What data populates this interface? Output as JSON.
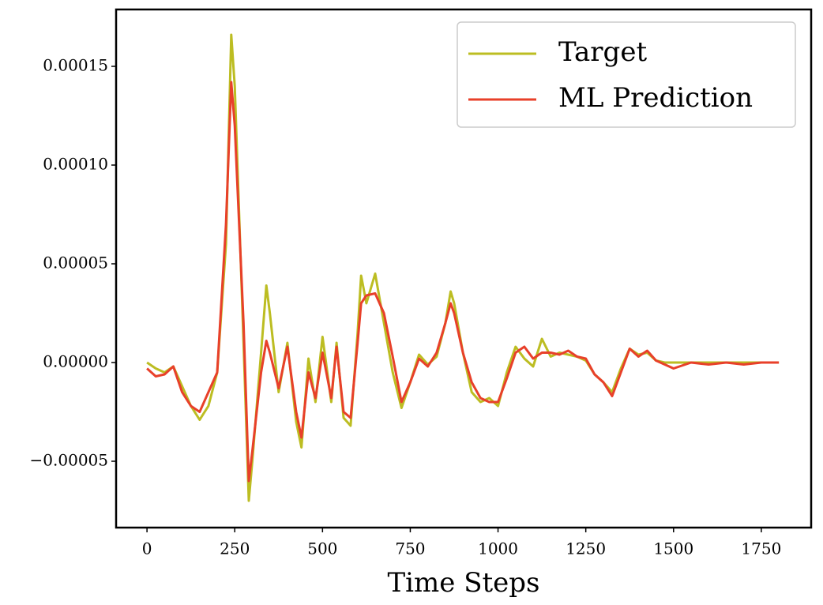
{
  "chart_data": {
    "type": "line",
    "xlabel": "Time Steps",
    "x": [
      0,
      25,
      50,
      75,
      100,
      125,
      150,
      175,
      200,
      225,
      240,
      250,
      275,
      290,
      300,
      325,
      340,
      350,
      375,
      400,
      425,
      440,
      460,
      480,
      500,
      525,
      540,
      560,
      580,
      600,
      610,
      625,
      650,
      675,
      700,
      725,
      750,
      775,
      800,
      825,
      850,
      865,
      875,
      900,
      925,
      950,
      975,
      1000,
      1025,
      1050,
      1075,
      1100,
      1125,
      1150,
      1175,
      1200,
      1225,
      1250,
      1275,
      1300,
      1325,
      1350,
      1375,
      1400,
      1425,
      1450,
      1475,
      1500,
      1550,
      1600,
      1650,
      1700,
      1750,
      1800
    ],
    "series": [
      {
        "name": "Target",
        "color": "#bcbd22",
        "values": [
          0,
          -3e-06,
          -5e-06,
          -2e-06,
          -1.2e-05,
          -2.2e-05,
          -2.9e-05,
          -2.2e-05,
          -5e-06,
          6e-05,
          0.000166,
          0.00014,
          1e-05,
          -7e-05,
          -5e-05,
          5e-06,
          3.9e-05,
          2.5e-05,
          -1.5e-05,
          1e-05,
          -3e-05,
          -4.3e-05,
          2e-06,
          -2e-05,
          1.3e-05,
          -2e-05,
          1e-05,
          -2.8e-05,
          -3.2e-05,
          1.5e-05,
          4.4e-05,
          3e-05,
          4.5e-05,
          2e-05,
          -5e-06,
          -2.3e-05,
          -1e-05,
          4e-06,
          -1e-06,
          3e-06,
          2e-05,
          3.6e-05,
          3e-05,
          5e-06,
          -1.5e-05,
          -2e-05,
          -1.8e-05,
          -2.2e-05,
          -5e-06,
          8e-06,
          2e-06,
          -2e-06,
          1.2e-05,
          3e-06,
          5e-06,
          4e-06,
          3e-06,
          1e-06,
          -6e-06,
          -1e-05,
          -1.5e-05,
          -3e-06,
          7e-06,
          4e-06,
          5e-06,
          1e-06,
          0,
          0,
          0,
          0,
          0,
          0,
          0,
          0
        ]
      },
      {
        "name": "ML Prediction",
        "color": "#e8402a",
        "values": [
          -3e-06,
          -7e-06,
          -6e-06,
          -2e-06,
          -1.5e-05,
          -2.2e-05,
          -2.5e-05,
          -1.5e-05,
          -5e-06,
          7e-05,
          0.000142,
          0.00012,
          2e-05,
          -6e-05,
          -4.5e-05,
          -5e-06,
          1.1e-05,
          5e-06,
          -1.3e-05,
          8e-06,
          -2.5e-05,
          -3.8e-05,
          -5e-06,
          -1.8e-05,
          5e-06,
          -1.8e-05,
          8e-06,
          -2.5e-05,
          -2.8e-05,
          1e-05,
          3e-05,
          3.4e-05,
          3.5e-05,
          2.5e-05,
          3e-06,
          -2e-05,
          -1e-05,
          2e-06,
          -2e-06,
          5e-06,
          2e-05,
          3e-05,
          2.5e-05,
          5e-06,
          -1e-05,
          -1.8e-05,
          -2e-05,
          -2e-05,
          -8e-06,
          5e-06,
          8e-06,
          2e-06,
          5e-06,
          5e-06,
          4e-06,
          6e-06,
          3e-06,
          2e-06,
          -6e-06,
          -1e-05,
          -1.7e-05,
          -5e-06,
          7e-06,
          3e-06,
          6e-06,
          1e-06,
          -1e-06,
          -3e-06,
          0,
          -1e-06,
          0,
          -1e-06,
          0,
          0
        ]
      }
    ],
    "xlim": [
      -88,
      1892
    ],
    "ylim": [
      -8.36e-05,
      0.0001788
    ],
    "xticks": [
      0,
      250,
      500,
      750,
      1000,
      1250,
      1500,
      1750
    ],
    "yticks": [
      {
        "value": -5e-05,
        "label": "−0.00005"
      },
      {
        "value": 0,
        "label": "0.00000"
      },
      5e-05,
      {
        "value": 0.0001,
        "label": "0.00010"
      },
      0.00015
    ],
    "legend": "upper right"
  }
}
